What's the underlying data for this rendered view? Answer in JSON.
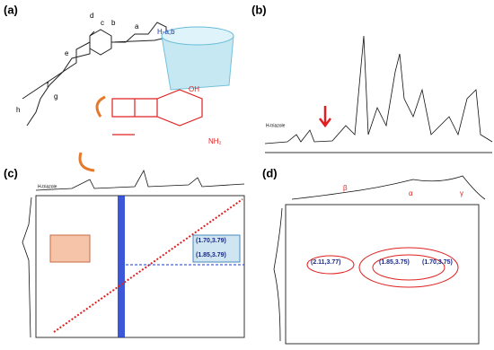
{
  "panels": [
    {
      "label": "(a)",
      "annotations": [
        "d",
        "c",
        "b",
        "a",
        "e",
        "f",
        "g",
        "h",
        "H-a,b",
        "OH",
        "NH₂"
      ]
    },
    {
      "label": "(b)",
      "annotations": [
        "H-triazole"
      ]
    },
    {
      "label": "(c)",
      "annotations": [
        "H-triazole",
        "(1.70,3.79)",
        "(1.85,3.79)"
      ]
    },
    {
      "label": "(d)",
      "annotations": [
        "β",
        "α",
        "γ",
        "(2.11,3.77)",
        "(1.85,3.75)",
        "(1.70,3.75)"
      ]
    }
  ]
}
